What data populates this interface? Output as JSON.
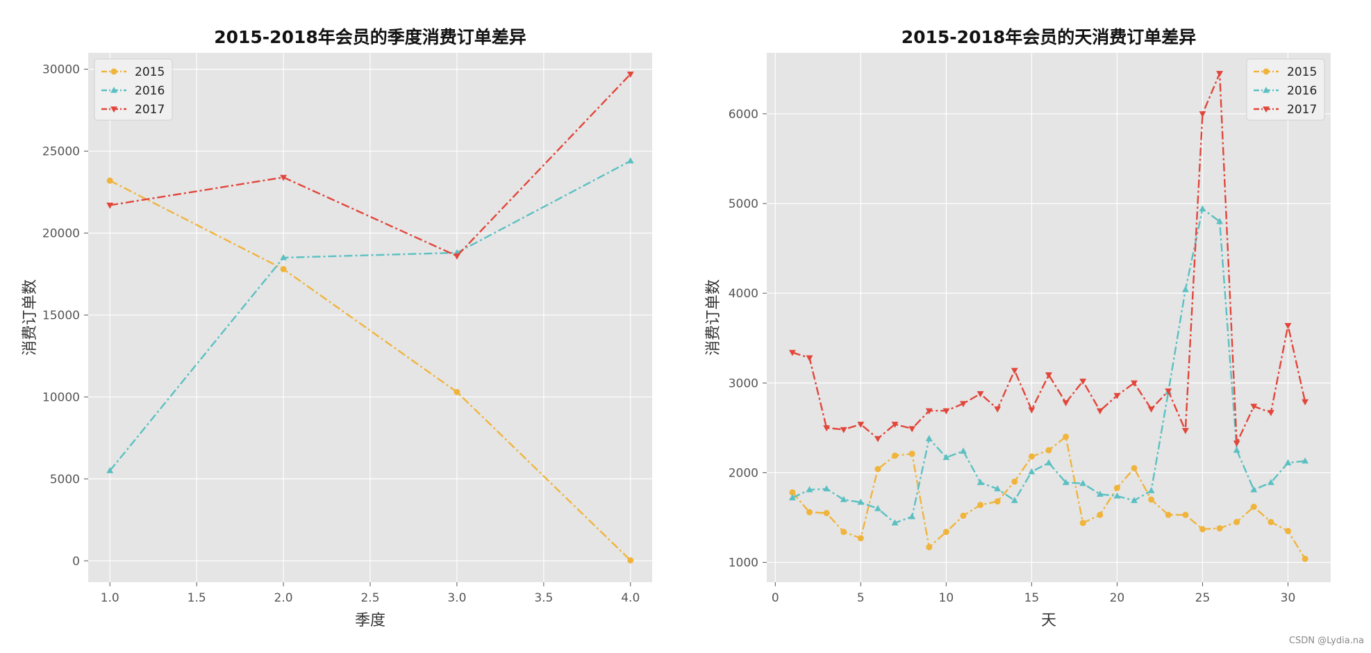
{
  "watermark": "CSDN @Lydia.na",
  "chart_data": [
    {
      "type": "line",
      "title": "2015-2018年会员的季度消费订单差异",
      "xlabel": "季度",
      "ylabel": "消费订单数",
      "xlim": [
        0.875,
        4.125
      ],
      "ylim": [
        -1300,
        31000
      ],
      "xticks": [
        1.0,
        1.5,
        2.0,
        2.5,
        3.0,
        3.5,
        4.0
      ],
      "xtick_labels": [
        "1.0",
        "1.5",
        "2.0",
        "2.5",
        "3.0",
        "3.5",
        "4.0"
      ],
      "yticks": [
        0,
        5000,
        10000,
        15000,
        20000,
        25000,
        30000
      ],
      "ytick_labels": [
        "0",
        "5000",
        "10000",
        "15000",
        "20000",
        "25000",
        "30000"
      ],
      "grid": true,
      "legend_placement": "top-left",
      "x": [
        1,
        2,
        3,
        4
      ],
      "series": [
        {
          "name": "2015",
          "color": "#f0b43c",
          "marker": "circle",
          "values": [
            23200,
            17800,
            10300,
            30
          ]
        },
        {
          "name": "2016",
          "color": "#5bc0c2",
          "marker": "triangle-up",
          "values": [
            5500,
            18500,
            18800,
            24400
          ]
        },
        {
          "name": "2017",
          "color": "#e2453a",
          "marker": "triangle-down",
          "values": [
            21700,
            23400,
            18600,
            29700
          ]
        }
      ]
    },
    {
      "type": "line",
      "title": "2015-2018年会员的天消费订单差异",
      "xlabel": "天",
      "ylabel": "消费订单数",
      "xlim": [
        -0.5,
        32.5
      ],
      "ylim": [
        780,
        6680
      ],
      "xticks": [
        0,
        5,
        10,
        15,
        20,
        25,
        30
      ],
      "xtick_labels": [
        "0",
        "5",
        "10",
        "15",
        "20",
        "25",
        "30"
      ],
      "yticks": [
        1000,
        2000,
        3000,
        4000,
        5000,
        6000
      ],
      "ytick_labels": [
        "1000",
        "2000",
        "3000",
        "4000",
        "5000",
        "6000"
      ],
      "grid": true,
      "legend_placement": "top-right",
      "x": [
        1,
        2,
        3,
        4,
        5,
        6,
        7,
        8,
        9,
        10,
        11,
        12,
        13,
        14,
        15,
        16,
        17,
        18,
        19,
        20,
        21,
        22,
        23,
        24,
        25,
        26,
        27,
        28,
        29,
        30,
        31
      ],
      "series": [
        {
          "name": "2015",
          "color": "#f0b43c",
          "marker": "circle",
          "values": [
            1780,
            1560,
            1550,
            1340,
            1270,
            2040,
            2190,
            2210,
            1170,
            1340,
            1520,
            1640,
            1680,
            1900,
            2180,
            2250,
            2400,
            1440,
            1530,
            1830,
            2050,
            1700,
            1530,
            1530,
            1370,
            1380,
            1450,
            1620,
            1450,
            1350,
            1040
          ]
        },
        {
          "name": "2016",
          "color": "#5bc0c2",
          "marker": "triangle-up",
          "values": [
            1720,
            1810,
            1820,
            1700,
            1670,
            1600,
            1440,
            1510,
            2380,
            2170,
            2240,
            1890,
            1820,
            1690,
            2010,
            2110,
            1890,
            1880,
            1760,
            1740,
            1690,
            1800,
            2900,
            4040,
            4940,
            4800,
            2250,
            1810,
            1890,
            2110,
            2130
          ]
        },
        {
          "name": "2017",
          "color": "#e2453a",
          "marker": "triangle-down",
          "values": [
            3340,
            3280,
            2500,
            2480,
            2540,
            2380,
            2540,
            2490,
            2690,
            2690,
            2770,
            2880,
            2710,
            3140,
            2700,
            3090,
            2780,
            3020,
            2690,
            2860,
            3000,
            2710,
            2910,
            2470,
            6000,
            6450,
            2330,
            2740,
            2670,
            3640,
            2790
          ]
        }
      ]
    }
  ]
}
